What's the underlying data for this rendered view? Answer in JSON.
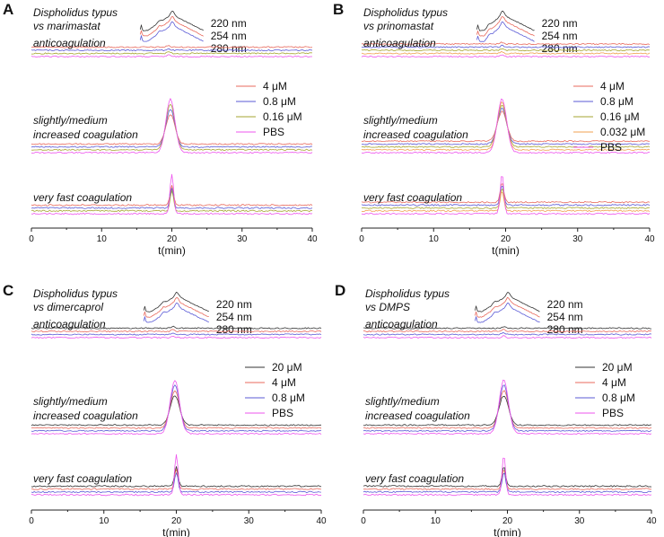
{
  "figure": {
    "uv_legend": [
      {
        "label": "220 nm",
        "color": "#333333"
      },
      {
        "label": "254 nm",
        "color": "#e8695c"
      },
      {
        "label": "280 nm",
        "color": "#5a5ad6"
      }
    ]
  },
  "chart_data": [
    {
      "panel": "A",
      "type": "line",
      "title_line1": "Dispholidus typus",
      "title_line2": "vs marimastat",
      "xlabel": "t(min)",
      "xlim": [
        0,
        40
      ],
      "xticks": [
        "0",
        "10",
        "20",
        "30",
        "40"
      ],
      "uv_peak_start_min": 15.5,
      "uv_peak_max_min": 20.0,
      "sections": [
        {
          "label": "anticoagulation",
          "peak": 0,
          "peak_time_min": 19.5
        },
        {
          "label_line1": "slightly/medium",
          "label_line2": "increased coagulation",
          "peak": 1,
          "peak_time_min": 19.8
        },
        {
          "label": "very fast coagulation",
          "peak": 1,
          "peak_time_min": 20.0
        }
      ],
      "legend": [
        {
          "label": "4 μM",
          "color": "#e8695c"
        },
        {
          "label": "0.8 μM",
          "color": "#5a5ad6"
        },
        {
          "label": "0.16 μM",
          "color": "#a6a630"
        },
        {
          "label": "PBS",
          "color": "#ee55ee"
        }
      ]
    },
    {
      "panel": "B",
      "type": "line",
      "title_line1": "Dispholidus typus",
      "title_line2": "vs prinomastat",
      "xlabel": "t(min)",
      "xlim": [
        0,
        40
      ],
      "xticks": [
        "0",
        "10",
        "20",
        "30",
        "40"
      ],
      "uv_peak_start_min": 16.0,
      "uv_peak_max_min": 19.5,
      "sections": [
        {
          "label": "anticoagulation",
          "peak": 0,
          "peak_time_min": 19.5
        },
        {
          "label_line1": "slightly/medium",
          "label_line2": "increased coagulation",
          "peak": 1,
          "peak_time_min": 19.5
        },
        {
          "label": "very fast coagulation",
          "peak": 1,
          "peak_time_min": 19.5
        }
      ],
      "legend": [
        {
          "label": "4 μM",
          "color": "#e8695c"
        },
        {
          "label": "0.8 μM",
          "color": "#5a5ad6"
        },
        {
          "label": "0.16 μM",
          "color": "#a6a630"
        },
        {
          "label": "0.032 μM",
          "color": "#f0a050"
        },
        {
          "label": "PBS",
          "color": "#ee55ee"
        }
      ]
    },
    {
      "panel": "C",
      "type": "line",
      "title_line1": "Dispholidus typus",
      "title_line2": "vs dimercaprol",
      "xlabel": "t(min)",
      "xlim": [
        0,
        40
      ],
      "xticks": [
        "0",
        "10",
        "20",
        "30",
        "40"
      ],
      "uv_peak_start_min": 15.5,
      "uv_peak_max_min": 20.0,
      "sections": [
        {
          "label": "anticoagulation",
          "peak": 0,
          "peak_time_min": 19.5
        },
        {
          "label_line1": "slightly/medium",
          "label_line2": "increased coagulation",
          "peak": 1,
          "peak_time_min": 19.8
        },
        {
          "label": "very fast coagulation",
          "peak": 1,
          "peak_time_min": 20.0
        }
      ],
      "legend": [
        {
          "label": "20 μM",
          "color": "#333333"
        },
        {
          "label": "4 μM",
          "color": "#e8695c"
        },
        {
          "label": "0.8 μM",
          "color": "#5a5ad6"
        },
        {
          "label": "PBS",
          "color": "#ee55ee"
        }
      ]
    },
    {
      "panel": "D",
      "type": "line",
      "title_line1": "Dispholidus typus",
      "title_line2": "vs DMPS",
      "xlabel": "t(min)",
      "xlim": [
        0,
        40
      ],
      "xticks": [
        "0",
        "10",
        "20",
        "30",
        "40"
      ],
      "uv_peak_start_min": 15.5,
      "uv_peak_max_min": 20.0,
      "sections": [
        {
          "label": "anticoagulation",
          "peak": 0,
          "peak_time_min": 19.5
        },
        {
          "label_line1": "slightly/medium",
          "label_line2": "increased coagulation",
          "peak": 1,
          "peak_time_min": 19.5
        },
        {
          "label": "very fast coagulation",
          "peak": 1,
          "peak_time_min": 19.5
        }
      ],
      "legend": [
        {
          "label": "20 μM",
          "color": "#333333"
        },
        {
          "label": "4 μM",
          "color": "#e8695c"
        },
        {
          "label": "0.8 μM",
          "color": "#5a5ad6"
        },
        {
          "label": "PBS",
          "color": "#ee55ee"
        }
      ]
    }
  ]
}
